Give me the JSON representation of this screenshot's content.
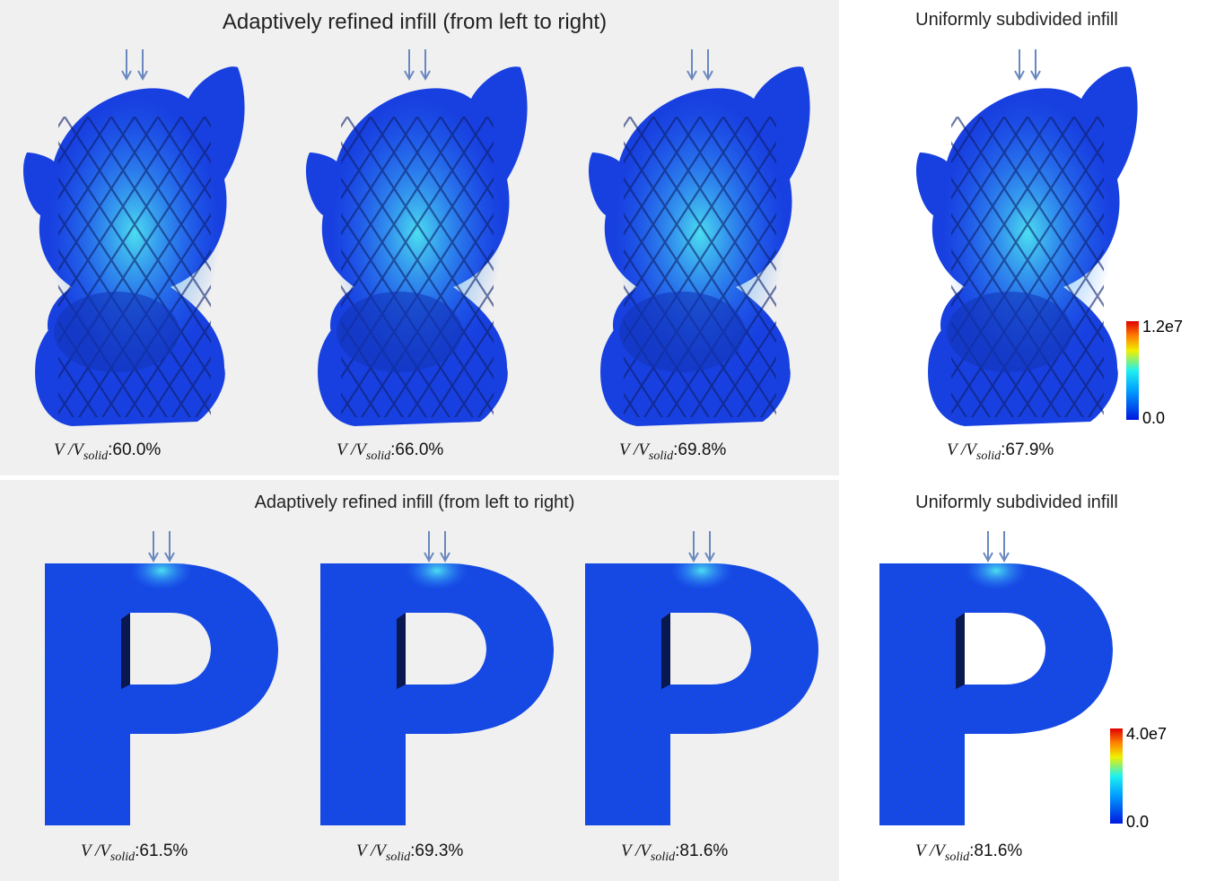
{
  "volume_label": {
    "symbol": "V /V",
    "subscript": "solid",
    "separator": ":"
  },
  "rows": [
    {
      "left_title": "Adaptively refined infill (from left to right)",
      "models": [
        "60.0%",
        "66.0%",
        "69.8%"
      ],
      "right_title": "Uniformly subdivided infill",
      "right_model": "67.9%",
      "colorbar": {
        "max": "1.2e7",
        "min": "0.0"
      }
    },
    {
      "left_title": "Adaptively refined infill (from left to right)",
      "models": [
        "61.5%",
        "69.3%",
        "81.6%"
      ],
      "right_title": "Uniformly subdivided infill",
      "right_model": "81.6%",
      "colorbar": {
        "max": "4.0e7",
        "min": "0.0"
      }
    }
  ]
}
